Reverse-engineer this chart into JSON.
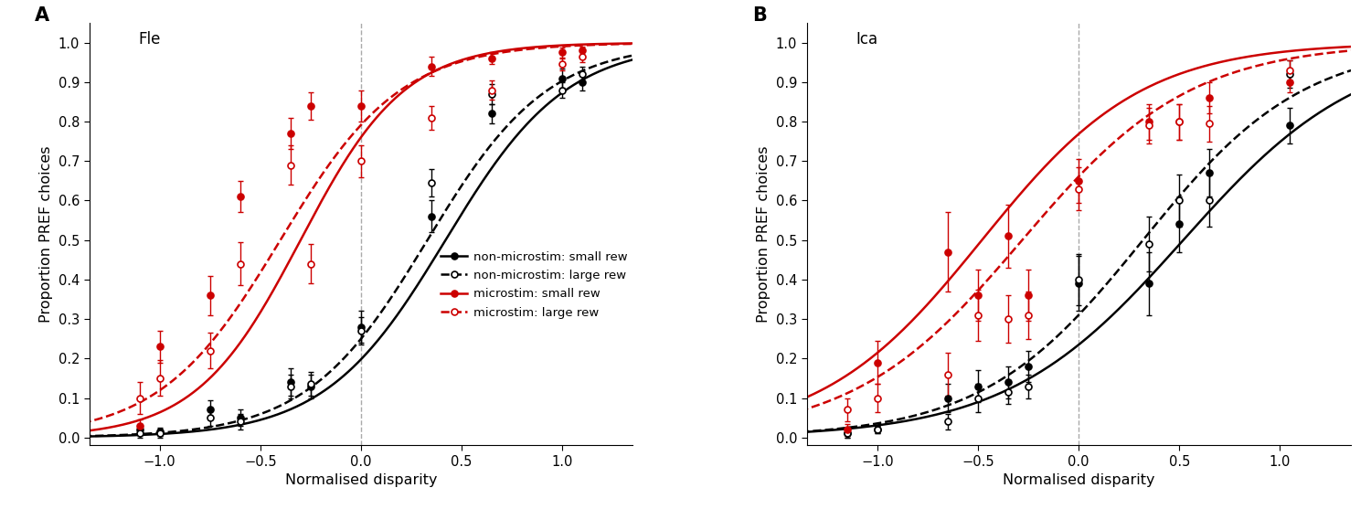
{
  "panel_A_title": "Fle",
  "panel_B_title": "Ica",
  "xlabel": "Normalised disparity",
  "ylabel": "Proportion PREF choices",
  "xlim": [
    -1.35,
    1.35
  ],
  "ylim": [
    -0.02,
    1.05
  ],
  "yticks": [
    0,
    0.1,
    0.2,
    0.3,
    0.4,
    0.5,
    0.6,
    0.7,
    0.8,
    0.9,
    1
  ],
  "xticks": [
    -1,
    -0.5,
    0,
    0.5,
    1
  ],
  "A_nonmicro_small": {
    "x": [
      -1.1,
      -1.0,
      -0.75,
      -0.6,
      -0.35,
      -0.25,
      0.0,
      0.35,
      0.65,
      1.0,
      1.1
    ],
    "y": [
      0.02,
      0.015,
      0.07,
      0.05,
      0.14,
      0.13,
      0.28,
      0.56,
      0.82,
      0.91,
      0.9
    ],
    "ye": [
      0.01,
      0.01,
      0.025,
      0.02,
      0.035,
      0.03,
      0.04,
      0.04,
      0.025,
      0.025,
      0.02
    ],
    "curve_mu": 0.42,
    "curve_sigma": 0.3,
    "color": "#000000",
    "linestyle": "solid",
    "marker": "o",
    "fillstyle": "full"
  },
  "A_nonmicro_large": {
    "x": [
      -1.1,
      -1.0,
      -0.75,
      -0.6,
      -0.35,
      -0.25,
      0.0,
      0.35,
      0.65,
      1.0,
      1.1
    ],
    "y": [
      0.01,
      0.01,
      0.05,
      0.04,
      0.13,
      0.135,
      0.27,
      0.645,
      0.87,
      0.88,
      0.92
    ],
    "ye": [
      0.01,
      0.01,
      0.02,
      0.02,
      0.03,
      0.03,
      0.035,
      0.035,
      0.025,
      0.02,
      0.02
    ],
    "curve_mu": 0.33,
    "curve_sigma": 0.3,
    "color": "#000000",
    "linestyle": "dashed",
    "marker": "o",
    "fillstyle": "none"
  },
  "A_micro_small": {
    "x": [
      -1.1,
      -1.0,
      -0.75,
      -0.6,
      -0.35,
      -0.25,
      0.0,
      0.35,
      0.65,
      1.0,
      1.1
    ],
    "y": [
      0.03,
      0.23,
      0.36,
      0.61,
      0.77,
      0.84,
      0.84,
      0.94,
      0.96,
      0.975,
      0.98
    ],
    "ye": [
      0.015,
      0.04,
      0.05,
      0.04,
      0.04,
      0.035,
      0.04,
      0.025,
      0.015,
      0.012,
      0.01
    ],
    "curve_mu": -0.3,
    "curve_sigma": 0.26,
    "color": "#cc0000",
    "linestyle": "solid",
    "marker": "o",
    "fillstyle": "full"
  },
  "A_micro_large": {
    "x": [
      -1.1,
      -1.0,
      -0.75,
      -0.6,
      -0.35,
      -0.25,
      0.0,
      0.35,
      0.65,
      1.0,
      1.1
    ],
    "y": [
      0.1,
      0.15,
      0.22,
      0.44,
      0.69,
      0.44,
      0.7,
      0.81,
      0.88,
      0.945,
      0.965
    ],
    "ye": [
      0.04,
      0.045,
      0.045,
      0.055,
      0.05,
      0.05,
      0.04,
      0.03,
      0.025,
      0.015,
      0.015
    ],
    "curve_mu": -0.4,
    "curve_sigma": 0.3,
    "color": "#cc0000",
    "linestyle": "dashed",
    "marker": "o",
    "fillstyle": "none"
  },
  "B_nonmicro_small": {
    "x": [
      -1.15,
      -1.0,
      -0.65,
      -0.5,
      -0.35,
      -0.25,
      0.0,
      0.35,
      0.5,
      0.65,
      1.05
    ],
    "y": [
      0.01,
      0.02,
      0.1,
      0.13,
      0.14,
      0.18,
      0.39,
      0.39,
      0.54,
      0.67,
      0.79
    ],
    "ye": [
      0.01,
      0.01,
      0.035,
      0.04,
      0.04,
      0.04,
      0.07,
      0.08,
      0.07,
      0.06,
      0.045
    ],
    "curve_mu": 0.52,
    "curve_sigma": 0.44,
    "color": "#000000",
    "linestyle": "solid",
    "marker": "o",
    "fillstyle": "full"
  },
  "B_nonmicro_large": {
    "x": [
      -1.15,
      -1.0,
      -0.65,
      -0.5,
      -0.35,
      -0.25,
      0.0,
      0.35,
      0.5,
      0.65,
      1.05
    ],
    "y": [
      0.01,
      0.02,
      0.04,
      0.1,
      0.115,
      0.13,
      0.4,
      0.49,
      0.6,
      0.6,
      0.92
    ],
    "ye": [
      0.01,
      0.01,
      0.02,
      0.035,
      0.03,
      0.03,
      0.065,
      0.07,
      0.065,
      0.065,
      0.035
    ],
    "curve_mu": 0.32,
    "curve_sigma": 0.4,
    "color": "#000000",
    "linestyle": "dashed",
    "marker": "o",
    "fillstyle": "none"
  },
  "B_micro_small": {
    "x": [
      -1.15,
      -1.0,
      -0.65,
      -0.5,
      -0.35,
      -0.25,
      0.0,
      0.35,
      0.5,
      0.65,
      1.05
    ],
    "y": [
      0.02,
      0.19,
      0.47,
      0.36,
      0.51,
      0.36,
      0.65,
      0.8,
      0.8,
      0.86,
      0.9
    ],
    "ye": [
      0.015,
      0.055,
      0.1,
      0.065,
      0.08,
      0.065,
      0.055,
      0.045,
      0.045,
      0.04,
      0.025
    ],
    "curve_mu": -0.48,
    "curve_sigma": 0.4,
    "color": "#cc0000",
    "linestyle": "solid",
    "marker": "o",
    "fillstyle": "full"
  },
  "B_micro_large": {
    "x": [
      -1.15,
      -1.0,
      -0.65,
      -0.5,
      -0.35,
      -0.25,
      0.0,
      0.35,
      0.5,
      0.65,
      1.05
    ],
    "y": [
      0.07,
      0.1,
      0.16,
      0.31,
      0.3,
      0.31,
      0.63,
      0.79,
      0.8,
      0.795,
      0.93
    ],
    "ye": [
      0.03,
      0.035,
      0.055,
      0.065,
      0.06,
      0.06,
      0.055,
      0.045,
      0.045,
      0.045,
      0.025
    ],
    "curve_mu": -0.28,
    "curve_sigma": 0.42,
    "color": "#cc0000",
    "linestyle": "dashed",
    "marker": "o",
    "fillstyle": "none"
  },
  "legend_entries": [
    {
      "label": "non-microstim: small rew",
      "color": "#000000",
      "linestyle": "solid",
      "marker": "o",
      "fillstyle": "full"
    },
    {
      "label": "non-microstim: large rew",
      "color": "#000000",
      "linestyle": "dashed",
      "marker": "o",
      "fillstyle": "none"
    },
    {
      "label": "microstim: small rew",
      "color": "#cc0000",
      "linestyle": "solid",
      "marker": "o",
      "fillstyle": "full"
    },
    {
      "label": "microstim: large rew",
      "color": "#cc0000",
      "linestyle": "dashed",
      "marker": "o",
      "fillstyle": "none"
    }
  ],
  "background_color": "#ffffff",
  "dashed_line_color": "#aaaaaa"
}
